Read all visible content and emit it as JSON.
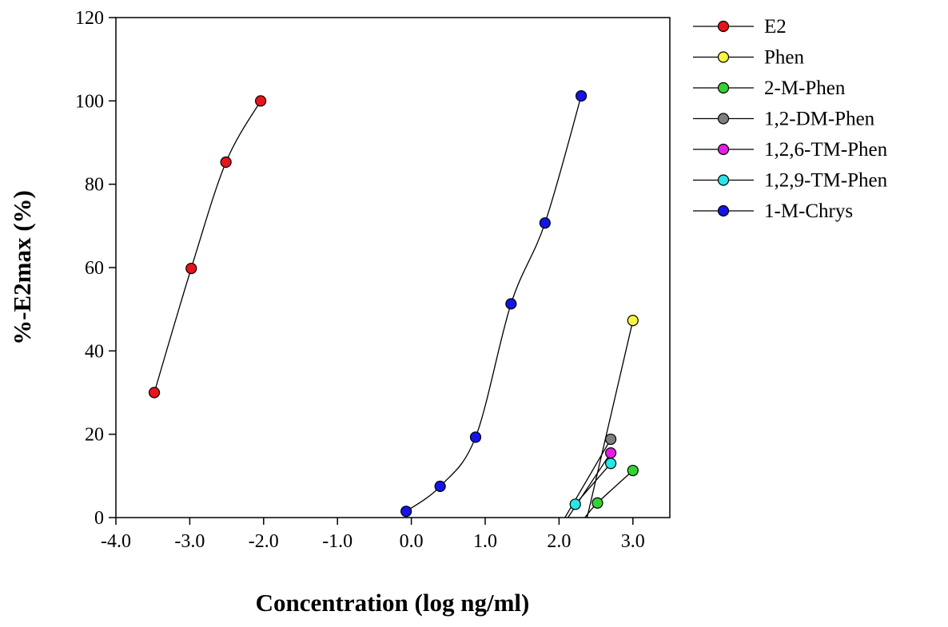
{
  "chart_data": {
    "type": "line",
    "title": "",
    "xlabel": "Concentration (log ng/ml)",
    "ylabel": "%-E2max (%)",
    "xlim": [
      -4.0,
      3.5
    ],
    "ylim": [
      0,
      120
    ],
    "xticks": [
      -4.0,
      -3.0,
      -2.0,
      -1.0,
      0.0,
      1.0,
      2.0,
      3.0
    ],
    "xtick_labels": [
      "-4.0",
      "-3.0",
      "-2.0",
      "-1.0",
      "0.0",
      "1.0",
      "2.0",
      "3.0"
    ],
    "yticks": [
      0,
      20,
      40,
      60,
      80,
      100,
      120
    ],
    "ytick_labels": [
      "0",
      "20",
      "40",
      "60",
      "80",
      "100",
      "120"
    ],
    "grid": false,
    "legend_position": "right",
    "series": [
      {
        "name": "E2",
        "color": "#e8141b",
        "x": [
          -3.48,
          -2.98,
          -2.51,
          -2.04
        ],
        "y": [
          30.0,
          59.8,
          85.3,
          100.0
        ]
      },
      {
        "name": "Phen",
        "color": "#f5f542",
        "x": [
          2.38,
          3.0
        ],
        "y": [
          0.0,
          47.3
        ]
      },
      {
        "name": "2-M-Phen",
        "color": "#33d133",
        "x": [
          2.35,
          2.52,
          3.0
        ],
        "y": [
          0.0,
          3.5,
          11.3
        ]
      },
      {
        "name": "1,2-DM-Phen",
        "color": "#7f7f7f",
        "x": [
          2.08,
          2.7
        ],
        "y": [
          0.0,
          18.8
        ]
      },
      {
        "name": "1,2,6-TM-Phen",
        "color": "#e41ee4",
        "x": [
          2.12,
          2.7
        ],
        "y": [
          0.0,
          15.5
        ]
      },
      {
        "name": "1,2,9-TM-Phen",
        "color": "#26e6e6",
        "x": [
          2.22,
          2.7
        ],
        "y": [
          3.2,
          13.0
        ]
      },
      {
        "name": "1-M-Chrys",
        "color": "#1414e6",
        "x": [
          -0.07,
          0.39,
          0.87,
          1.35,
          1.81,
          2.3
        ],
        "y": [
          1.5,
          7.5,
          19.3,
          51.3,
          70.7,
          101.2
        ]
      }
    ]
  }
}
